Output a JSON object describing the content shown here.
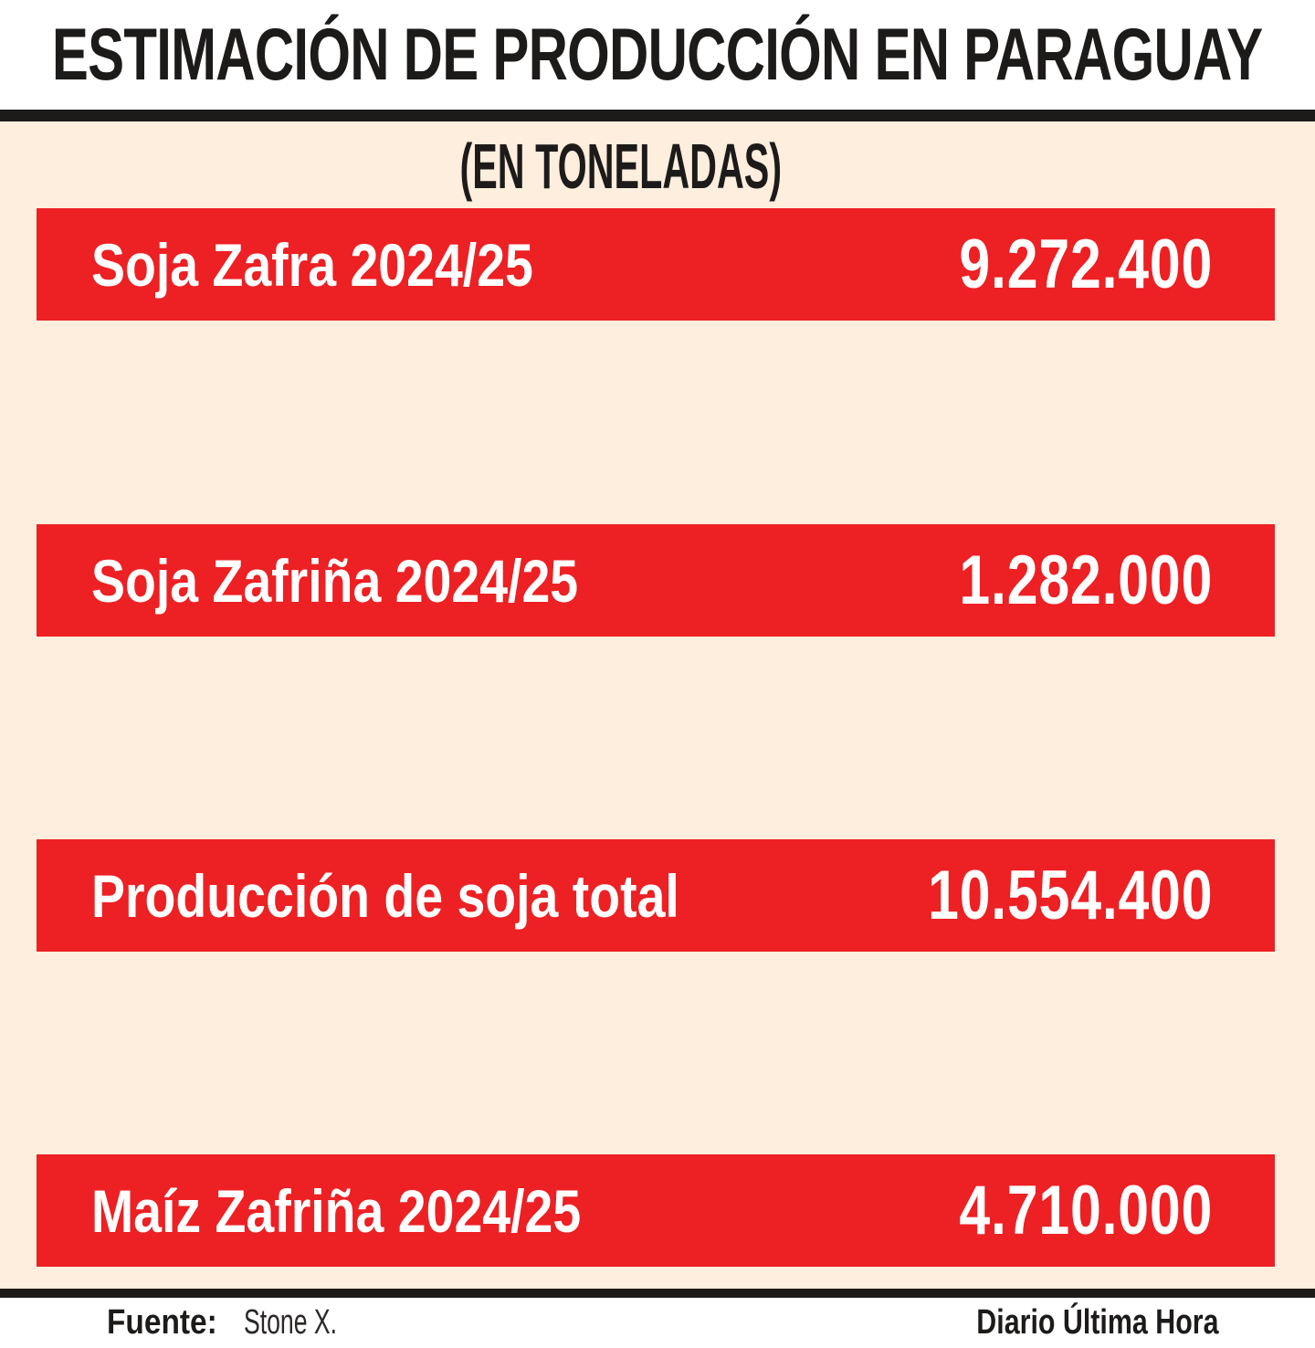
{
  "title": "ESTIMACIÓN DE PRODUCCIÓN EN PARAGUAY",
  "subtitle": "(EN TONELADAS)",
  "rows": [
    {
      "label": "Soja Zafra 2024/25",
      "value": "9.272.400"
    },
    {
      "label": "Soja Zafriña 2024/25",
      "value": "1.282.000"
    },
    {
      "label": "Producción de soja total",
      "value": "10.554.400"
    },
    {
      "label": "Maíz Zafriña 2024/25",
      "value": "4.710.000"
    }
  ],
  "footer": {
    "source_label": "Fuente:",
    "source_value": "Stone X.",
    "credit": "Diario Última Hora"
  },
  "colors": {
    "bar_red": "#ed2024",
    "background_cream": "#fdeedd",
    "text_black": "#1d1b1a",
    "bar_text_white": "#ffffff"
  },
  "chart_data": {
    "type": "bar",
    "title": "ESTIMACIÓN DE PRODUCCIÓN EN PARAGUAY",
    "subtitle": "(EN TONELADAS)",
    "unit": "toneladas",
    "categories": [
      "Soja Zafra 2024/25",
      "Soja Zafriña 2024/25",
      "Producción de soja total",
      "Maíz Zafriña 2024/25"
    ],
    "values": [
      9272400,
      1282000,
      10554400,
      4710000
    ],
    "value_labels": [
      "9.272.400",
      "1.282.000",
      "10.554.400",
      "4.710.000"
    ],
    "orientation": "horizontal",
    "grid": false,
    "legend": false,
    "notes": "Styled infographic: four equal-width red bands, each with category label at left and value at right",
    "source": "Stone X."
  }
}
